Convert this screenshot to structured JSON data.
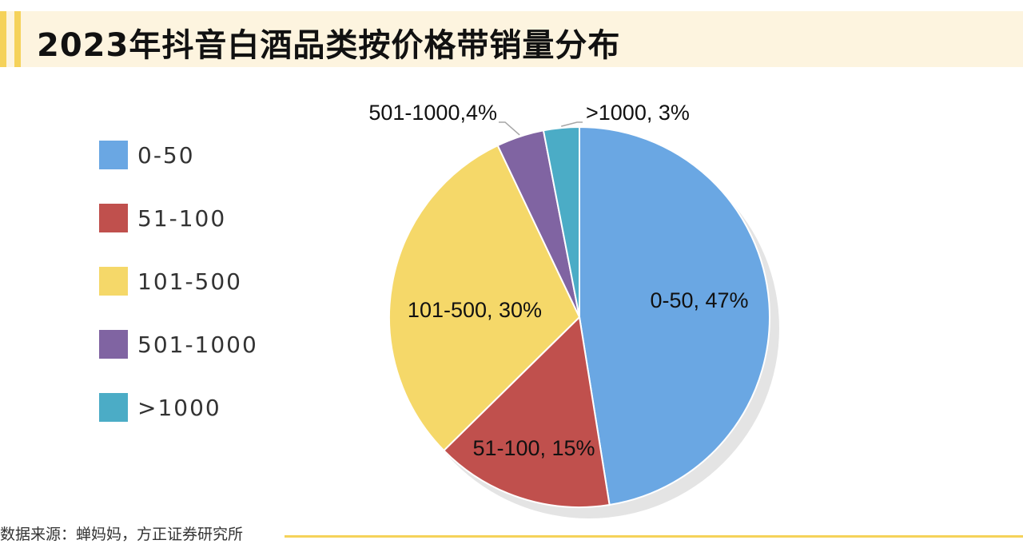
{
  "title": "2023年抖音白酒品类按价格带销量分布",
  "source": "数据来源：蝉妈妈，方正证券研究所",
  "chart_data": {
    "type": "pie",
    "title": "2023年抖音白酒品类按价格带销量分布",
    "legend_position": "left",
    "slices": [
      {
        "name": "0-50",
        "value": 47,
        "label": "0-50, 47%",
        "color": "#6aa7e3"
      },
      {
        "name": "51-100",
        "value": 15,
        "label": "51-100, 15%",
        "color": "#c0504d"
      },
      {
        "name": "101-500",
        "value": 30,
        "label": "101-500, 30%",
        "color": "#f5d869"
      },
      {
        "name": "501-1000",
        "value": 4,
        "label": "501-1000,4%",
        "color": "#8064a2"
      },
      {
        "name": ">1000",
        "value": 3,
        "label": ">1000, 3%",
        "color": "#4bacc6"
      }
    ]
  }
}
